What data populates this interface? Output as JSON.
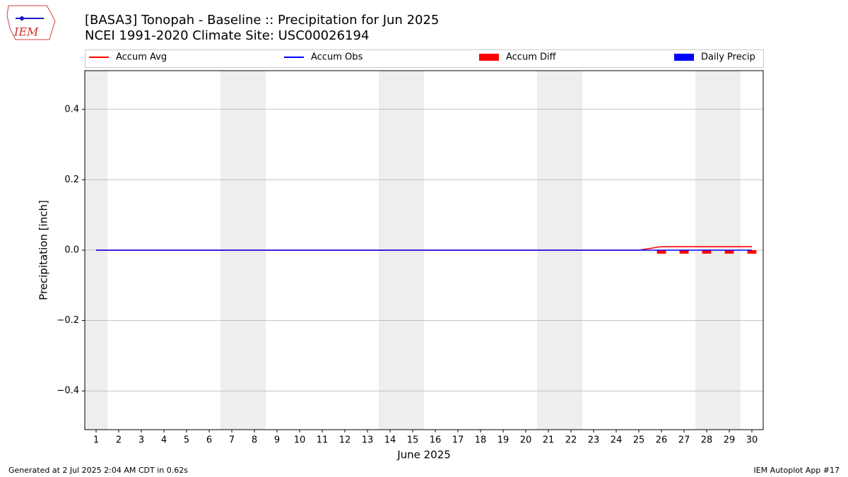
{
  "chart_data": {
    "type": "line",
    "title": "[BASA3] Tonopah - Baseline :: Precipitation for Jun 2025",
    "subtitle": "NCEI 1991-2020 Climate Site: USC00026194",
    "y_label": "Precipitation [inch]",
    "x_label": "June 2025",
    "logo_text": "IEM",
    "footer_left": "Generated at 2 Jul 2025 2:04 AM CDT in 0.62s",
    "footer_right": "IEM Autoplot App #17",
    "x": [
      1,
      2,
      3,
      4,
      5,
      6,
      7,
      8,
      9,
      10,
      11,
      12,
      13,
      14,
      15,
      16,
      17,
      18,
      19,
      20,
      21,
      22,
      23,
      24,
      25,
      26,
      27,
      28,
      29,
      30
    ],
    "xlim": [
      0.5,
      30.5
    ],
    "xticks": [
      1,
      2,
      3,
      4,
      5,
      6,
      7,
      8,
      9,
      10,
      11,
      12,
      13,
      14,
      15,
      16,
      17,
      18,
      19,
      20,
      21,
      22,
      23,
      24,
      25,
      26,
      27,
      28,
      29,
      30
    ],
    "ylim": [
      -0.51,
      0.51
    ],
    "yticks": [
      {
        "value": -0.4,
        "label": "−0.4"
      },
      {
        "value": -0.2,
        "label": "−0.2"
      },
      {
        "value": 0,
        "label": "0.0"
      },
      0.2,
      0.4
    ],
    "grid": true,
    "shaded_days": [
      1,
      7,
      8,
      14,
      15,
      21,
      22,
      28,
      29
    ],
    "series": [
      {
        "name": "Accum Avg",
        "kind": "line",
        "color": "#ff0000",
        "values": [
          0,
          0,
          0,
          0,
          0,
          0,
          0,
          0,
          0,
          0,
          0,
          0,
          0,
          0,
          0,
          0,
          0,
          0,
          0,
          0,
          0,
          0,
          0,
          0,
          0,
          0.01,
          0.01,
          0.01,
          0.01,
          0.01
        ]
      },
      {
        "name": "Accum Obs",
        "kind": "line",
        "color": "#0000ff",
        "values": [
          0,
          0,
          0,
          0,
          0,
          0,
          0,
          0,
          0,
          0,
          0,
          0,
          0,
          0,
          0,
          0,
          0,
          0,
          0,
          0,
          0,
          0,
          0,
          0,
          0,
          0,
          0,
          0,
          0,
          0
        ]
      },
      {
        "name": "Accum Diff",
        "kind": "bar",
        "color": "#ff0000",
        "values": [
          0,
          0,
          0,
          0,
          0,
          0,
          0,
          0,
          0,
          0,
          0,
          0,
          0,
          0,
          0,
          0,
          0,
          0,
          0,
          0,
          0,
          0,
          0,
          0,
          0,
          -0.01,
          -0.01,
          -0.01,
          -0.01,
          -0.01
        ]
      },
      {
        "name": "Daily Precip",
        "kind": "bar",
        "color": "#0000ff",
        "values": [
          0,
          0,
          0,
          0,
          0,
          0,
          0,
          0,
          0,
          0,
          0,
          0,
          0,
          0,
          0,
          0,
          0,
          0,
          0,
          0,
          0,
          0,
          0,
          0,
          0,
          0,
          0,
          0,
          0,
          0
        ]
      }
    ]
  }
}
